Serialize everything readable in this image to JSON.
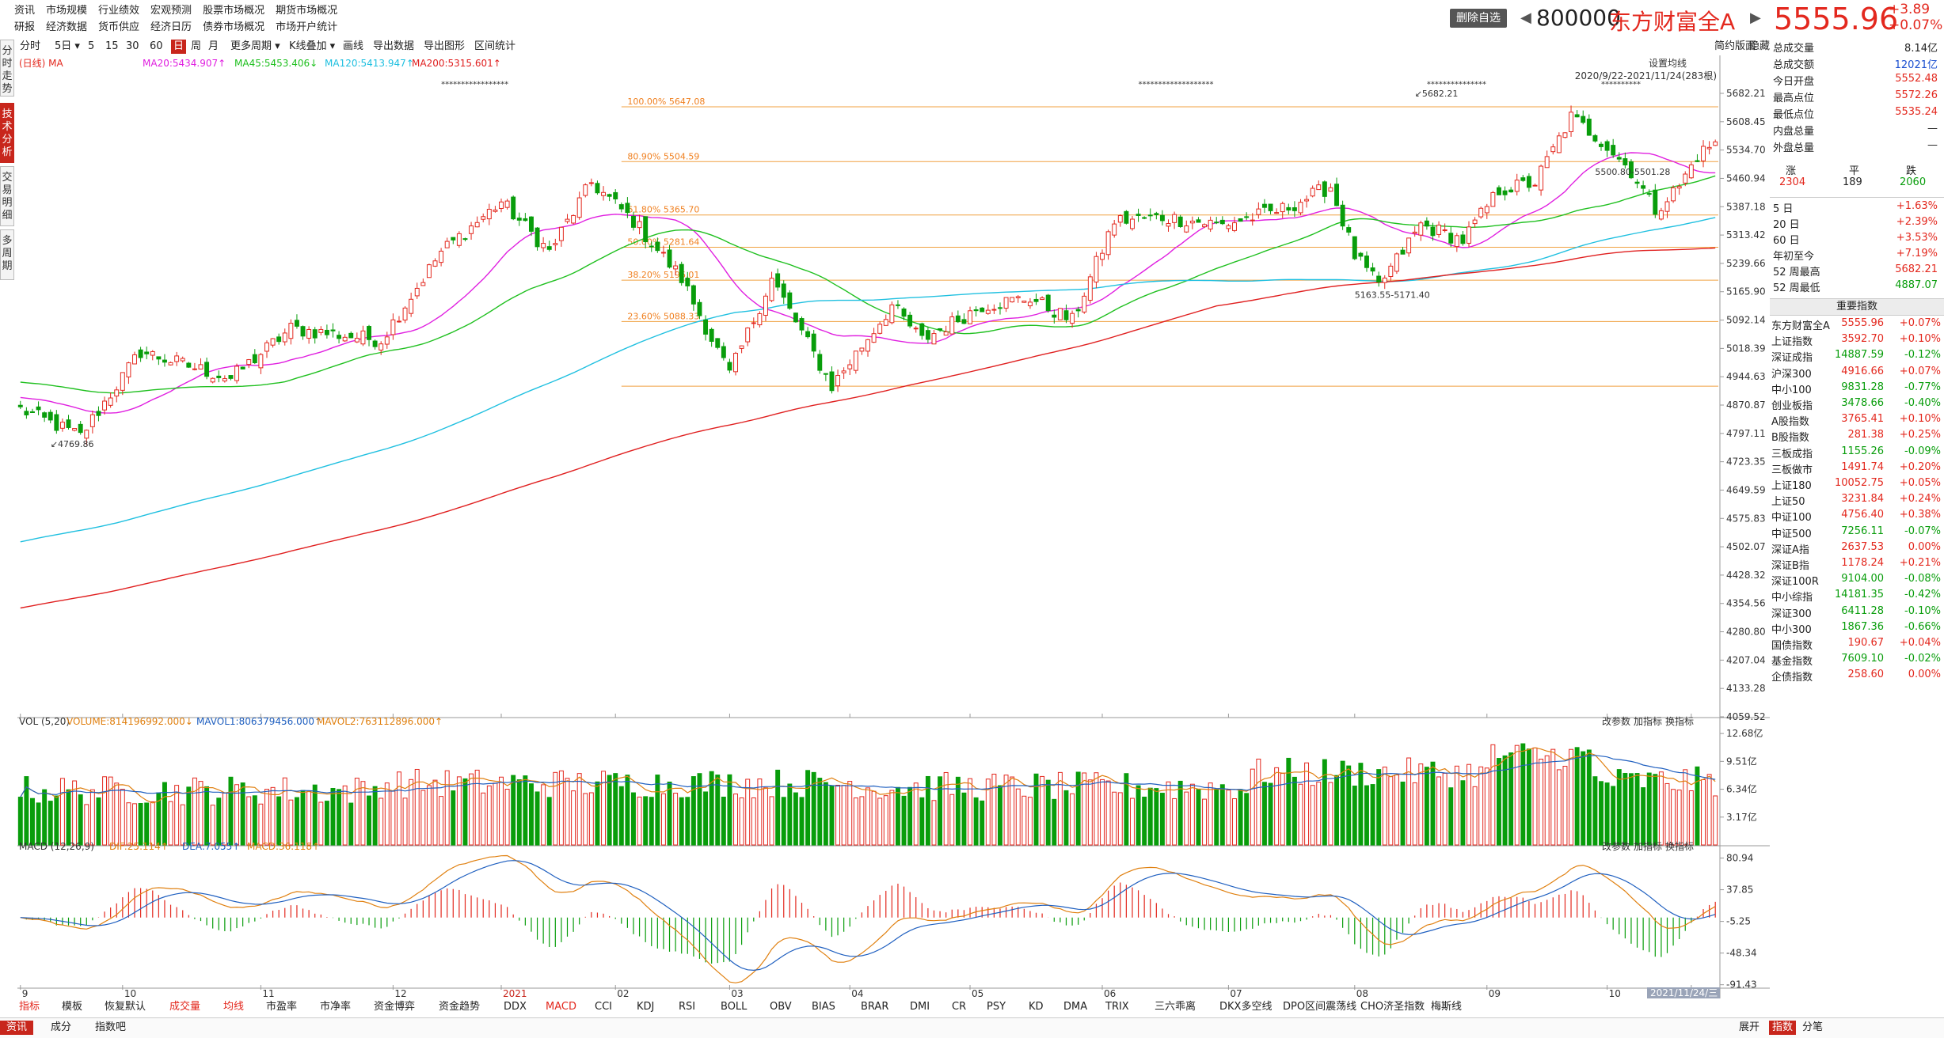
{
  "menu": {
    "row1": [
      "资讯",
      "市场规模",
      "行业绩效",
      "宏观预测",
      "股票市场概况",
      "期货市场概况"
    ],
    "row2": [
      "研报",
      "经济数据",
      "货币供应",
      "经济日历",
      "债券市场概况",
      "市场开户统计"
    ]
  },
  "stock": {
    "remove_watch": "删除自选",
    "code": "800000",
    "name": "东方财富全A",
    "price": "5555.96",
    "change": "+3.89",
    "change_pct": "+0.07%",
    "prev_arrow": "◀",
    "next_arrow": "▶"
  },
  "left_tabs": [
    "分时走势",
    "技术分析",
    "交易明细",
    "多周期"
  ],
  "toolbar": {
    "items": [
      "分时",
      "5日",
      "5",
      "15",
      "30",
      "60",
      "日",
      "周",
      "月",
      "更多周期",
      "K线叠加",
      "画线",
      "导出数据",
      "导出图形",
      "区间统计"
    ],
    "active": "日",
    "simple": "简约版面",
    "hide": "隐藏"
  },
  "chart_data": [
    {
      "type": "candlestick",
      "title": "(日线) MA",
      "ma_labels": [
        "MA20:5434.907↑",
        "MA45:5453.406↓",
        "MA120:5413.947↑",
        "MA200:5315.601↑"
      ],
      "ma_colors": [
        "#e020e0",
        "#20c020",
        "#20c0e0",
        "#e02020"
      ],
      "y_ticks": [
        "5682.21",
        "5608.45",
        "5534.70",
        "5460.94",
        "5387.18",
        "5313.42",
        "5239.66",
        "5165.90",
        "5092.14",
        "5018.39",
        "4944.63",
        "4870.87",
        "4797.11",
        "4723.35",
        "4649.59",
        "4575.83",
        "4502.07",
        "4428.32",
        "4354.56",
        "4280.80",
        "4207.04",
        "4133.28",
        "4059.52"
      ],
      "ylim": [
        4059.52,
        5682.21
      ],
      "x_labels": [
        "9",
        "10",
        "11",
        "12",
        "2021",
        "02",
        "03",
        "04",
        "05",
        "06",
        "07",
        "08",
        "09",
        "10",
        "11"
      ],
      "fib_levels": [
        {
          "label": "100.00%  5647.08",
          "value": 5647.08
        },
        {
          "label": "80.90%  5504.59",
          "value": 5504.59
        },
        {
          "label": "61.80%  5365.70",
          "value": 5365.7
        },
        {
          "label": "50.00%  5281.64",
          "value": 5281.64
        },
        {
          "label": "38.20%  5196.01",
          "value": 5196.01
        },
        {
          "label": "23.60%  5088.33",
          "value": 5088.33
        },
        {
          "label": "",
          "value": 4920.0
        }
      ],
      "annotations": [
        "5682.21",
        "4769.86",
        "5163.55-5171.40",
        "5500.80-5501.28"
      ],
      "range_label": "2020/9/22-2021/11/24(283根)",
      "set_ma": "设置均线",
      "price_anchors": [
        {
          "i": 0,
          "c": 4860
        },
        {
          "i": 10,
          "c": 4790
        },
        {
          "i": 20,
          "c": 5010
        },
        {
          "i": 35,
          "c": 4940
        },
        {
          "i": 45,
          "c": 5070
        },
        {
          "i": 60,
          "c": 5040
        },
        {
          "i": 70,
          "c": 5270
        },
        {
          "i": 80,
          "c": 5400
        },
        {
          "i": 88,
          "c": 5270
        },
        {
          "i": 95,
          "c": 5450
        },
        {
          "i": 102,
          "c": 5350
        },
        {
          "i": 110,
          "c": 5200
        },
        {
          "i": 118,
          "c": 4950
        },
        {
          "i": 125,
          "c": 5200
        },
        {
          "i": 135,
          "c": 4920
        },
        {
          "i": 145,
          "c": 5130
        },
        {
          "i": 150,
          "c": 5040
        },
        {
          "i": 160,
          "c": 5130
        },
        {
          "i": 168,
          "c": 5150
        },
        {
          "i": 175,
          "c": 5090
        },
        {
          "i": 182,
          "c": 5350
        },
        {
          "i": 190,
          "c": 5360
        },
        {
          "i": 200,
          "c": 5340
        },
        {
          "i": 210,
          "c": 5380
        },
        {
          "i": 218,
          "c": 5440
        },
        {
          "i": 222,
          "c": 5260
        },
        {
          "i": 226,
          "c": 5180
        },
        {
          "i": 233,
          "c": 5340
        },
        {
          "i": 240,
          "c": 5300
        },
        {
          "i": 246,
          "c": 5430
        },
        {
          "i": 252,
          "c": 5450
        },
        {
          "i": 258,
          "c": 5620
        },
        {
          "i": 263,
          "c": 5560
        },
        {
          "i": 268,
          "c": 5480
        },
        {
          "i": 272,
          "c": 5380
        },
        {
          "i": 276,
          "c": 5440
        },
        {
          "i": 279,
          "c": 5520
        },
        {
          "i": 282,
          "c": 5556
        }
      ]
    },
    {
      "type": "bar",
      "title": "VOL (5,20)",
      "labels": [
        "VOLUME:814196992.000↓",
        "MAVOL1:806379456.000↑",
        "MAVOL2:763112896.000↑"
      ],
      "y_ticks": [
        "12.68亿",
        "9.51亿",
        "6.34亿",
        "3.17亿"
      ],
      "ylim": [
        0,
        13.5
      ]
    },
    {
      "type": "bar",
      "title": "MACD (12,26,9)",
      "labels": [
        "DIF:25.114↑",
        "DEA:7.055↑",
        "MACD:36.118↑"
      ],
      "y_ticks": [
        "80.94",
        "37.85",
        "-5.25",
        "-48.34",
        "-91.43"
      ],
      "ylim": [
        -95,
        88
      ]
    }
  ],
  "subpanel_buttons": [
    "改参数",
    "加指标",
    "换指标"
  ],
  "panel": {
    "stats": [
      {
        "k": "总成交量",
        "v": "8.14亿",
        "c": "black"
      },
      {
        "k": "总成交额",
        "v": "12021亿",
        "c": "blue"
      },
      {
        "k": "今日开盘",
        "v": "5552.48",
        "c": "red"
      },
      {
        "k": "最高点位",
        "v": "5572.26",
        "c": "red"
      },
      {
        "k": "最低点位",
        "v": "5535.24",
        "c": "red"
      },
      {
        "k": "内盘总量",
        "v": "—",
        "c": "black"
      },
      {
        "k": "外盘总量",
        "v": "—",
        "c": "black"
      }
    ],
    "breadth_labels": [
      "涨",
      "平",
      "跌"
    ],
    "breadth_values": [
      "2304",
      "189",
      "2060"
    ],
    "perf": [
      {
        "k": "5 日",
        "v": "+1.63%",
        "c": "red"
      },
      {
        "k": "20 日",
        "v": "+2.39%",
        "c": "red"
      },
      {
        "k": "60 日",
        "v": "+3.53%",
        "c": "red"
      },
      {
        "k": "年初至今",
        "v": "+7.19%",
        "c": "red"
      },
      {
        "k": "52 周最高",
        "v": "5682.21",
        "c": "red"
      },
      {
        "k": "52 周最低",
        "v": "4887.07",
        "c": "green"
      }
    ],
    "indices_title": "重要指数",
    "indices": [
      {
        "n": "东方财富全A",
        "v": "5555.96",
        "p": "+0.07%",
        "c": "red"
      },
      {
        "n": "上证指数",
        "v": "3592.70",
        "p": "+0.10%",
        "c": "red"
      },
      {
        "n": "深证成指",
        "v": "14887.59",
        "p": "-0.12%",
        "c": "green"
      },
      {
        "n": "沪深300",
        "v": "4916.66",
        "p": "+0.07%",
        "c": "red"
      },
      {
        "n": "中小100",
        "v": "9831.28",
        "p": "-0.77%",
        "c": "green"
      },
      {
        "n": "创业板指",
        "v": "3478.66",
        "p": "-0.40%",
        "c": "green"
      },
      {
        "n": "A股指数",
        "v": "3765.41",
        "p": "+0.10%",
        "c": "red"
      },
      {
        "n": "B股指数",
        "v": "281.38",
        "p": "+0.25%",
        "c": "red"
      },
      {
        "n": "三板成指",
        "v": "1155.26",
        "p": "-0.09%",
        "c": "green"
      },
      {
        "n": "三板做市",
        "v": "1491.74",
        "p": "+0.20%",
        "c": "red"
      },
      {
        "n": "上证180",
        "v": "10052.75",
        "p": "+0.05%",
        "c": "red"
      },
      {
        "n": "上证50",
        "v": "3231.84",
        "p": "+0.24%",
        "c": "red"
      },
      {
        "n": "中证100",
        "v": "4756.40",
        "p": "+0.38%",
        "c": "red"
      },
      {
        "n": "中证500",
        "v": "7256.11",
        "p": "-0.07%",
        "c": "green"
      },
      {
        "n": "深证A指",
        "v": "2637.53",
        "p": "0.00%",
        "c": "red"
      },
      {
        "n": "深证B指",
        "v": "1178.24",
        "p": "+0.21%",
        "c": "red"
      },
      {
        "n": "深证100R",
        "v": "9104.00",
        "p": "-0.08%",
        "c": "green"
      },
      {
        "n": "中小综指",
        "v": "14181.35",
        "p": "-0.42%",
        "c": "green"
      },
      {
        "n": "深证300",
        "v": "6411.28",
        "p": "-0.10%",
        "c": "green"
      },
      {
        "n": "中小300",
        "v": "1867.36",
        "p": "-0.66%",
        "c": "green"
      },
      {
        "n": "国债指数",
        "v": "190.67",
        "p": "+0.04%",
        "c": "red"
      },
      {
        "n": "基金指数",
        "v": "7609.10",
        "p": "-0.02%",
        "c": "green"
      },
      {
        "n": "企债指数",
        "v": "258.60",
        "p": "0.00%",
        "c": "red"
      }
    ]
  },
  "bottom_tabs": [
    "指标",
    "模板",
    "恢复默认",
    "成交量",
    "均线",
    "市盈率",
    "市净率",
    "资金博弈",
    "资金趋势",
    "DDX",
    "MACD",
    "CCI",
    "KDJ",
    "RSI",
    "BOLL",
    "OBV",
    "BIAS",
    "BRAR",
    "DMI",
    "CR",
    "PSY",
    "KD",
    "DMA",
    "TRIX",
    "三六乖离",
    "DKX多空线",
    "DPO区间震荡线",
    "CHO济圣指数",
    "梅斯线"
  ],
  "bottom_active": "指标",
  "date_label": "2021/11/24/三",
  "status_tabs": [
    "资讯",
    "成分",
    "指数吧"
  ],
  "status_right": [
    "展开",
    "指数",
    "分笔"
  ]
}
